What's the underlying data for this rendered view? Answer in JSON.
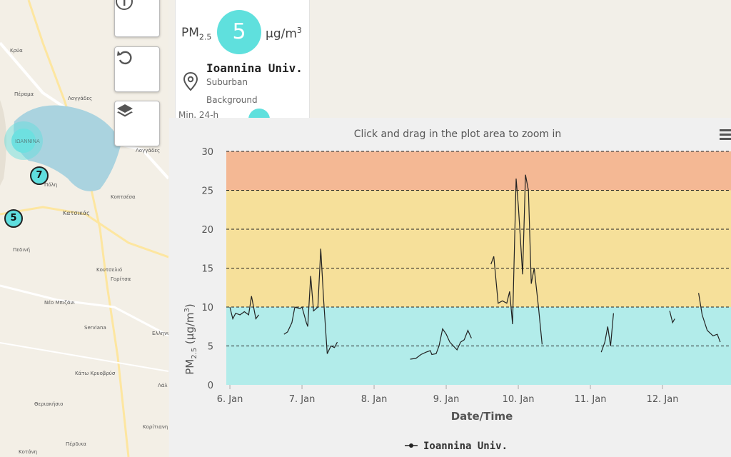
{
  "map": {
    "labels": [
      "Κρύα",
      "Πέραμα",
      "Λογγάδες",
      "ΙΩΑΝΝΙΝΑ",
      "Λογγάδες",
      "Πόλη",
      "Κατσικάς",
      "Κοπτσέσα",
      "Πεδινή",
      "Κουτσελιό",
      "Γορίτσα",
      "Νέο Μπιζάνι",
      "Serviana",
      "Ελληνι",
      "Κάτω Κρυοβρύσ",
      "Θεριακήσιο",
      "Κορίτιανη",
      "Πέρδικα",
      "Κοτάνη",
      "Λάλ"
    ],
    "markers": {
      "m1": "7",
      "m2": "5"
    }
  },
  "controls": {
    "info": "info",
    "reset": "reset",
    "layers": "layers"
  },
  "card": {
    "pm_label": "PM",
    "pm_sub": "2.5",
    "value": "5",
    "unit": "μg/m",
    "unit_sup": "3",
    "station": "Ioannina Univ.",
    "type": "Suburban",
    "category": "Background",
    "partial": "Min. 24-h"
  },
  "chart_data": {
    "type": "line",
    "title": "Click and drag in the plot area to zoom in",
    "xlabel": "Date/Time",
    "ylabel": "PM2.5 (μg/m3)",
    "ylim": [
      0,
      30
    ],
    "yticks": [
      0,
      5,
      10,
      15,
      20,
      25,
      30
    ],
    "xticks": [
      "6. Jan",
      "7. Jan",
      "8. Jan",
      "9. Jan",
      "10. Jan",
      "11. Jan",
      "12. Jan"
    ],
    "bands": [
      {
        "from": 0,
        "to": 10,
        "color": "#b2ecea"
      },
      {
        "from": 10,
        "to": 25,
        "color": "#f6e09a"
      },
      {
        "from": 25,
        "to": 30,
        "color": "#f4b894"
      }
    ],
    "grid": "dashed",
    "legend": "bottom",
    "series": [
      {
        "name": "Ioannina Univ.",
        "color": "#222222",
        "segments": [
          [
            [
              6.0,
              10
            ],
            [
              6.04,
              8.5
            ],
            [
              6.08,
              9.2
            ],
            [
              6.14,
              9.0
            ],
            [
              6.2,
              9.4
            ],
            [
              6.26,
              9.0
            ],
            [
              6.3,
              11.4
            ],
            [
              6.36,
              8.5
            ],
            [
              6.4,
              9.0
            ]
          ],
          [
            [
              6.75,
              6.5
            ],
            [
              6.8,
              6.8
            ],
            [
              6.86,
              8.0
            ],
            [
              6.9,
              10.0
            ],
            [
              6.97,
              9.8
            ],
            [
              7.0,
              10.0
            ],
            [
              7.06,
              8.0
            ],
            [
              7.08,
              7.5
            ],
            [
              7.12,
              14.0
            ],
            [
              7.16,
              9.5
            ],
            [
              7.22,
              10.0
            ],
            [
              7.26,
              17.5
            ],
            [
              7.3,
              11.0
            ],
            [
              7.35,
              4.0
            ],
            [
              7.4,
              5.0
            ],
            [
              7.45,
              4.8
            ],
            [
              7.49,
              5.5
            ]
          ],
          [
            [
              8.5,
              3.3
            ],
            [
              8.58,
              3.4
            ],
            [
              8.65,
              3.9
            ],
            [
              8.72,
              4.2
            ],
            [
              8.78,
              4.4
            ],
            [
              8.8,
              3.9
            ],
            [
              8.86,
              4.0
            ],
            [
              8.9,
              5.0
            ],
            [
              8.95,
              7.2
            ],
            [
              9.0,
              6.5
            ],
            [
              9.05,
              5.5
            ],
            [
              9.1,
              5.0
            ],
            [
              9.15,
              4.5
            ],
            [
              9.2,
              5.5
            ],
            [
              9.25,
              5.8
            ],
            [
              9.3,
              7.0
            ],
            [
              9.35,
              6.0
            ]
          ],
          [
            [
              9.62,
              15.5
            ],
            [
              9.66,
              16.5
            ],
            [
              9.72,
              10.5
            ],
            [
              9.78,
              10.8
            ],
            [
              9.84,
              10.5
            ],
            [
              9.88,
              12.0
            ],
            [
              9.92,
              7.8
            ],
            [
              9.97,
              26.5
            ],
            [
              10.0,
              23.0
            ],
            [
              10.06,
              14.2
            ],
            [
              10.1,
              27.0
            ],
            [
              10.14,
              25.0
            ],
            [
              10.18,
              13.0
            ],
            [
              10.22,
              15.0
            ],
            [
              10.28,
              10.0
            ],
            [
              10.33,
              5.2
            ]
          ],
          [
            [
              11.15,
              4.2
            ],
            [
              11.2,
              5.5
            ],
            [
              11.24,
              7.5
            ],
            [
              11.28,
              5.0
            ],
            [
              11.32,
              9.2
            ]
          ],
          [
            [
              12.1,
              9.5
            ],
            [
              12.14,
              8.0
            ],
            [
              12.17,
              8.5
            ]
          ],
          [
            [
              12.5,
              11.8
            ],
            [
              12.55,
              9.0
            ],
            [
              12.62,
              7.0
            ],
            [
              12.7,
              6.3
            ],
            [
              12.76,
              6.5
            ],
            [
              12.8,
              5.5
            ]
          ]
        ]
      }
    ]
  }
}
